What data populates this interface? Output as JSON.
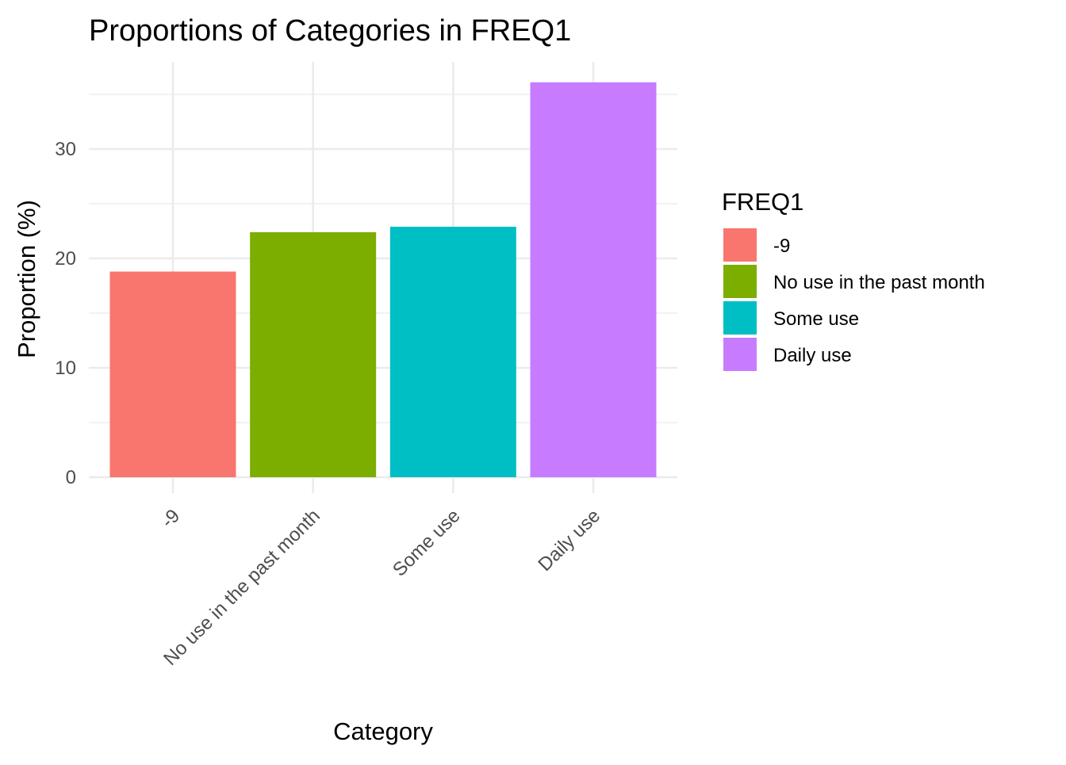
{
  "chart_data": {
    "type": "bar",
    "title": "Proportions of Categories in FREQ1",
    "xlabel": "Category",
    "ylabel": "Proportion (%)",
    "categories": [
      "-9",
      "No use in the past month",
      "Some use",
      "Daily use"
    ],
    "values": [
      18.8,
      22.4,
      22.9,
      36.1
    ],
    "colors": [
      "#F8766D",
      "#7CAE00",
      "#00BFC4",
      "#C77CFF"
    ],
    "ylim": [
      0,
      37.9
    ],
    "y_ticks": [
      0,
      10,
      20,
      30
    ],
    "grid": true,
    "legend": {
      "title": "FREQ1",
      "position": "right",
      "items": [
        "-9",
        "No use in the past month",
        "Some use",
        "Daily use"
      ]
    }
  }
}
